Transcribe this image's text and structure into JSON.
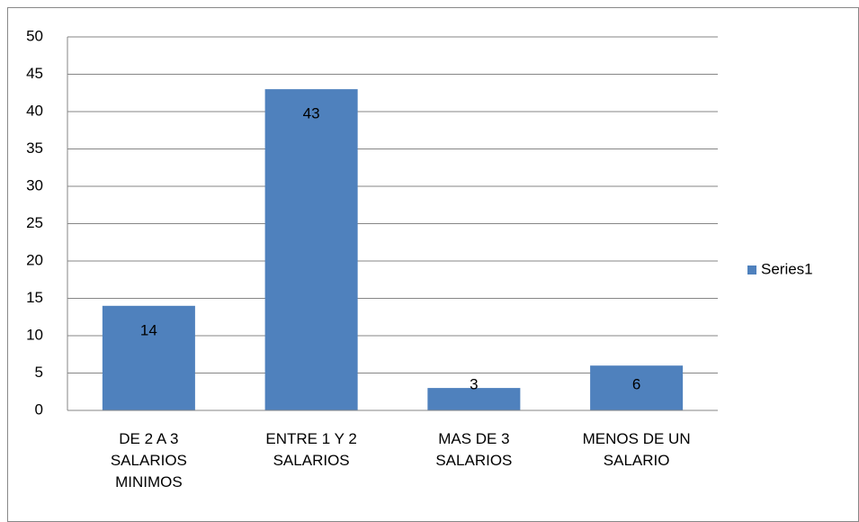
{
  "chart_data": {
    "type": "bar",
    "categories": [
      "DE 2 A 3 SALARIOS MINIMOS",
      "ENTRE 1 Y 2 SALARIOS",
      "MAS DE 3 SALARIOS",
      "MENOS DE UN SALARIO"
    ],
    "series": [
      {
        "name": "Series1",
        "color": "#4f81bd",
        "values": [
          14,
          43,
          3,
          6
        ]
      }
    ],
    "ylim": [
      0,
      50
    ],
    "yticks": [
      0,
      5,
      10,
      15,
      20,
      25,
      30,
      35,
      40,
      45,
      50
    ],
    "grid": true,
    "legend": "right"
  }
}
